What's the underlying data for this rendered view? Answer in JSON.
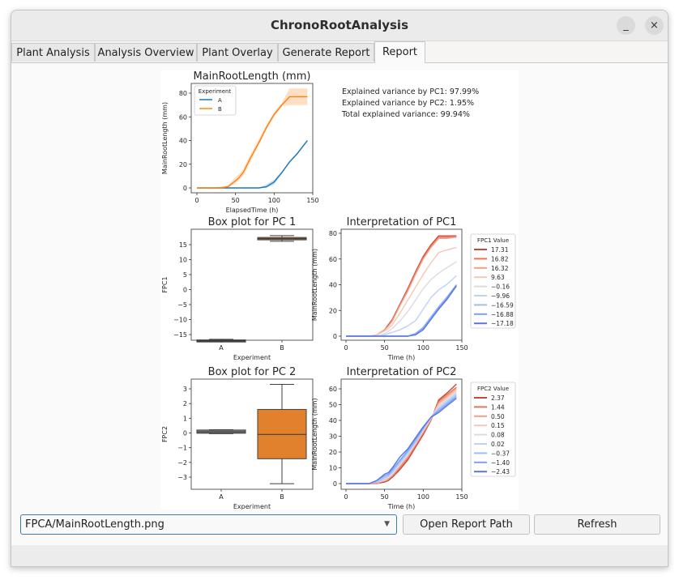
{
  "window": {
    "title": "ChronoRootAnalysis",
    "minimize_icon": "_",
    "close_icon": "×"
  },
  "tabs": [
    {
      "label": "Plant Analysis",
      "active": false
    },
    {
      "label": "Analysis Overview",
      "active": false
    },
    {
      "label": "Plant Overlay",
      "active": false
    },
    {
      "label": "Generate Report",
      "active": false
    },
    {
      "label": "Report",
      "active": true
    }
  ],
  "controls": {
    "report_select_value": "FPCA/MainRootLength.png",
    "open_report_path_label": "Open Report Path",
    "refresh_label": "Refresh"
  },
  "variance_text": [
    "Explained variance by PC1: 97.99%",
    "Explained variance by PC2: 1.95%",
    "Total explained variance: 99.94%"
  ],
  "chart_data": [
    {
      "type": "line",
      "title": "MainRootLength (mm)",
      "xlabel": "ElapsedTime (h)",
      "ylabel": "MainRootLength (mm)",
      "xlim": [
        0,
        150
      ],
      "ylim": [
        0,
        80
      ],
      "xticks": [
        0,
        50,
        100,
        150
      ],
      "yticks": [
        0,
        20,
        40,
        60,
        80
      ],
      "legend": {
        "title": "Experiment",
        "placement": "top-left"
      },
      "x": [
        0,
        10,
        20,
        30,
        40,
        50,
        55,
        60,
        70,
        80,
        90,
        100,
        110,
        120,
        130,
        143
      ],
      "series": [
        {
          "name": "A",
          "color": "#1f77b4",
          "values": [
            0,
            0,
            0,
            0,
            0,
            0,
            0,
            0,
            0,
            0,
            1,
            5,
            13,
            22,
            29,
            40
          ],
          "lower": [
            0,
            0,
            0,
            0,
            0,
            0,
            0,
            0,
            0,
            0,
            0,
            3,
            12,
            21,
            28,
            39
          ],
          "upper": [
            0,
            0,
            0,
            0,
            0,
            0,
            0,
            0,
            0,
            0,
            3,
            7,
            14,
            23,
            30,
            41
          ]
        },
        {
          "name": "B",
          "color": "#ff7f0e",
          "values": [
            0,
            0,
            0,
            0,
            1,
            6,
            9,
            13,
            26,
            38,
            51,
            62,
            70,
            77,
            77,
            77
          ],
          "lower": [
            0,
            0,
            0,
            0,
            0,
            4,
            7,
            10,
            23,
            36,
            49,
            60,
            69,
            70,
            70,
            70
          ],
          "upper": [
            0,
            0,
            0,
            1,
            2,
            9,
            12,
            16,
            29,
            41,
            53,
            64,
            72,
            84,
            84,
            84
          ]
        }
      ]
    },
    {
      "type": "box",
      "title": "Box plot for PC 1",
      "xlabel": "Experiment",
      "ylabel": "FPC1",
      "ylim": [
        -18.8,
        19.5
      ],
      "yticks": [
        -15,
        -10,
        -5,
        0,
        5,
        10,
        15
      ],
      "categories": [
        "A",
        "B"
      ],
      "boxes": [
        {
          "name": "A",
          "color": "#3a4750",
          "min": -17.3,
          "q1": -17.2,
          "median": -17.0,
          "q3": -16.8,
          "max": -16.6
        },
        {
          "name": "B",
          "color": "#c0702a",
          "min": 16.1,
          "q1": 16.6,
          "median": 17.0,
          "q3": 17.4,
          "max": 18.0
        }
      ]
    },
    {
      "type": "line",
      "title": "Interpretation of PC1",
      "xlabel": "Time (h)",
      "ylabel": "MainRootLength (mm)",
      "xlim": [
        0,
        150
      ],
      "ylim": [
        0,
        80
      ],
      "xticks": [
        0,
        50,
        100,
        150
      ],
      "yticks": [
        0,
        20,
        40,
        60,
        80
      ],
      "legend": {
        "title": "FPC1 Value",
        "placement": "outside-right"
      },
      "x": [
        0,
        10,
        20,
        30,
        40,
        50,
        55,
        60,
        70,
        80,
        90,
        100,
        110,
        120,
        130,
        143
      ],
      "series": [
        {
          "name": "17.31",
          "color": "#c9473b",
          "values": [
            0,
            0,
            0,
            0,
            1,
            5,
            9,
            13,
            25,
            37,
            50,
            62,
            71,
            78,
            78,
            78
          ]
        },
        {
          "name": "16.82",
          "color": "#e8735a",
          "values": [
            0,
            0,
            0,
            0,
            1,
            5,
            8,
            12,
            24,
            36,
            49,
            61,
            70,
            77,
            77,
            77
          ]
        },
        {
          "name": "16.32",
          "color": "#f5a085",
          "values": [
            0,
            0,
            0,
            0,
            1,
            5,
            8,
            12,
            24,
            35,
            48,
            60,
            69,
            76,
            76,
            77
          ]
        },
        {
          "name": "9.63",
          "color": "#f3c8b4",
          "values": [
            0,
            0,
            0,
            0,
            1,
            4,
            6,
            9,
            18,
            28,
            38,
            48,
            57,
            65,
            67,
            69
          ]
        },
        {
          "name": "-0.16",
          "color": "#dcdcdc",
          "values": [
            0,
            0,
            0,
            0,
            0,
            2,
            4,
            6,
            12,
            19,
            28,
            37,
            44,
            49,
            53,
            58
          ]
        },
        {
          "name": "-9.96",
          "color": "#bed2f6",
          "values": [
            0,
            0,
            0,
            0,
            0,
            1,
            2,
            3,
            5,
            8,
            12,
            21,
            30,
            36,
            40,
            47
          ]
        },
        {
          "name": "-16.59",
          "color": "#9cbcfc",
          "values": [
            0,
            0,
            0,
            0,
            0,
            0,
            0,
            0,
            0,
            0,
            2,
            7,
            15,
            23,
            30,
            40
          ]
        },
        {
          "name": "-16.88",
          "color": "#7d9ff6",
          "values": [
            0,
            0,
            0,
            0,
            0,
            0,
            0,
            0,
            0,
            0,
            2,
            6,
            14,
            22,
            29,
            40
          ]
        },
        {
          "name": "-17.18",
          "color": "#5a78e0",
          "values": [
            0,
            0,
            0,
            0,
            0,
            0,
            0,
            0,
            0,
            0,
            1,
            5,
            13,
            21,
            28,
            39
          ]
        }
      ]
    },
    {
      "type": "box",
      "title": "Box plot for PC 2",
      "xlabel": "Experiment",
      "ylabel": "FPC2",
      "ylim": [
        -3.8,
        3.5
      ],
      "yticks": [
        -3,
        -2,
        -1,
        0,
        1,
        2,
        3
      ],
      "categories": [
        "A",
        "B"
      ],
      "boxes": [
        {
          "name": "A",
          "color": "#808080",
          "min": -0.05,
          "q1": -0.02,
          "median": 0.08,
          "q3": 0.2,
          "max": 0.22
        },
        {
          "name": "B",
          "color": "#e1812c",
          "min": -3.45,
          "q1": -1.75,
          "median": -0.1,
          "q3": 1.6,
          "max": 3.3
        }
      ]
    },
    {
      "type": "line",
      "title": "Interpretation of PC2",
      "xlabel": "Time (h)",
      "ylabel": "MainRootLength (mm)",
      "xlim": [
        0,
        150
      ],
      "ylim": [
        0,
        60
      ],
      "xticks": [
        0,
        50,
        100,
        150
      ],
      "yticks": [
        0,
        10,
        20,
        30,
        40,
        50,
        60
      ],
      "legend": {
        "title": "FPC2 Value",
        "placement": "outside-right"
      },
      "x": [
        0,
        10,
        20,
        30,
        40,
        50,
        55,
        60,
        70,
        80,
        90,
        100,
        110,
        120,
        130,
        143
      ],
      "series": [
        {
          "name": "2.37",
          "color": "#c9473b",
          "values": [
            0,
            0,
            0,
            0,
            0,
            1,
            2,
            4,
            9,
            15,
            23,
            31,
            40,
            53,
            57,
            63
          ]
        },
        {
          "name": "1.44",
          "color": "#e8735a",
          "values": [
            0,
            0,
            0,
            0,
            0,
            2,
            3,
            5,
            10,
            16,
            24,
            32,
            40,
            52,
            56,
            61
          ]
        },
        {
          "name": "0.50",
          "color": "#f5a085",
          "values": [
            0,
            0,
            0,
            0,
            0,
            2,
            3,
            5,
            11,
            17,
            25,
            33,
            41,
            51,
            55,
            60
          ]
        },
        {
          "name": "0.15",
          "color": "#f3c8b4",
          "values": [
            0,
            0,
            0,
            0,
            1,
            2,
            4,
            6,
            12,
            18,
            25,
            33,
            41,
            50,
            54,
            59
          ]
        },
        {
          "name": "0.08",
          "color": "#dcdcdc",
          "values": [
            0,
            0,
            0,
            0,
            1,
            3,
            4,
            6,
            12,
            18,
            26,
            34,
            42,
            49,
            53,
            58
          ]
        },
        {
          "name": "0.02",
          "color": "#bed2f6",
          "values": [
            0,
            0,
            0,
            0,
            1,
            3,
            5,
            7,
            13,
            19,
            26,
            34,
            42,
            48,
            52,
            57
          ]
        },
        {
          "name": "-0.37",
          "color": "#9cbcfc",
          "values": [
            0,
            0,
            0,
            0,
            1,
            4,
            5,
            8,
            14,
            20,
            27,
            35,
            42,
            47,
            51,
            56
          ]
        },
        {
          "name": "-1.40",
          "color": "#7d9ff6",
          "values": [
            0,
            0,
            0,
            0,
            2,
            5,
            6,
            9,
            15,
            21,
            28,
            35,
            42,
            46,
            50,
            55
          ]
        },
        {
          "name": "-2.43",
          "color": "#5a78e0",
          "values": [
            0,
            0,
            0,
            0,
            2,
            6,
            7,
            10,
            17,
            22,
            29,
            36,
            42,
            45,
            49,
            54
          ]
        }
      ]
    }
  ]
}
